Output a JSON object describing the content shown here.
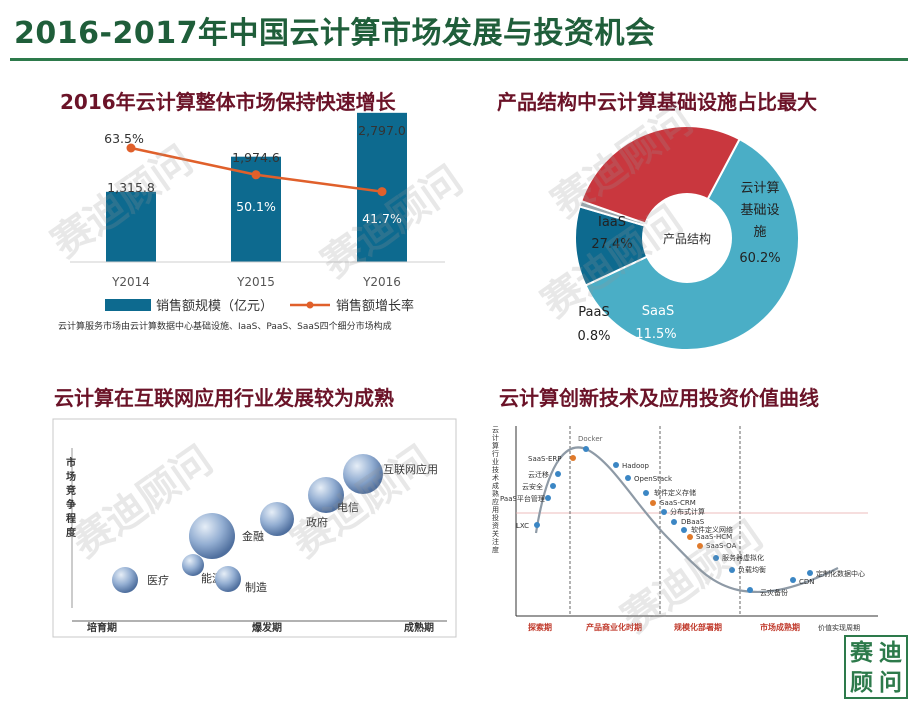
{
  "page": {
    "title": "2016-2017年中国云计算市场发展与投资机会"
  },
  "q1": {
    "title": "2016年云计算整体市场保持快速增长",
    "categories": [
      "Y2014",
      "Y2015",
      "Y2016"
    ],
    "bar_labels": [
      "1,315.8",
      "1,974.6",
      "2,797.0"
    ],
    "rate_labels": [
      "63.5%",
      "50.1%",
      "41.7%"
    ],
    "legend_bar": "销售额规模（亿元）",
    "legend_line": "销售额增长率",
    "note": "云计算服务市场由云计算数据中心基础设施、IaaS、PaaS、SaaS四个细分市场构成",
    "colors": {
      "bar": "#0d6a8f",
      "line": "#e0602b"
    }
  },
  "chart_data": [
    {
      "type": "bar",
      "title": "2016年云计算整体市场保持快速增长",
      "categories": [
        "Y2014",
        "Y2015",
        "Y2016"
      ],
      "series": [
        {
          "name": "销售额规模（亿元）",
          "values": [
            1315.8,
            1974.6,
            2797.0
          ]
        },
        {
          "name": "销售额增长率",
          "values": [
            63.5,
            50.1,
            41.7
          ]
        }
      ],
      "ylim": [
        0,
        3000
      ]
    },
    {
      "type": "pie",
      "title": "产品结构中云计算基础设施占比最大",
      "center_label": "产品结构",
      "slices": [
        {
          "name": "云计算基础设施",
          "value": 60.2
        },
        {
          "name": "SaaS",
          "value": 11.5
        },
        {
          "name": "PaaS",
          "value": 0.8
        },
        {
          "name": "IaaS",
          "value": 27.4
        }
      ]
    }
  ],
  "q2": {
    "title": "产品结构中云计算基础设施占比最大",
    "center": "产品结构",
    "infra_label_lines": [
      "云计算",
      "基础设",
      "施"
    ],
    "infra_pct": "60.2%",
    "iaas_name": "IaaS",
    "iaas_pct": "27.4%",
    "paas_name": "PaaS",
    "paas_pct": "0.8%",
    "saas_name": "SaaS",
    "saas_pct": "11.5%",
    "colors": {
      "infra": "#4aaec6",
      "iaas": "#c9373e",
      "paas": "#9aa6ad",
      "saas": "#0d6a8f"
    }
  },
  "q3": {
    "title": "云计算在互联网应用行业发展较为成熟",
    "y_label": "市场竞争程度",
    "stages": [
      "培育期",
      "爆发期",
      "成熟期"
    ],
    "bubbles": [
      "医疗",
      "能源",
      "制造",
      "金融",
      "政府",
      "电信",
      "互联网应用"
    ]
  },
  "q4": {
    "title": "云计算创新技术及应用投资价值曲线",
    "y_axis_label": "云计算行业技术成熟应用投资关注度",
    "points": [
      "LXC",
      "PaaS平台管理",
      "云安全",
      "云迁移",
      "SaaS-ERP",
      "Docker",
      "Hadoop",
      "OpenStack",
      "软件定义存储",
      "SaaS-CRM",
      "分布式计算",
      "DBaaS",
      "软件定义网络",
      "SaaS-HCM",
      "SaaS-OA",
      "服务器虚拟化",
      "负载均衡",
      "云灾备份",
      "CDN",
      "定制化数据中心"
    ],
    "phases": [
      "探索期",
      "产品商业化时期",
      "规模化部署期",
      "市场成熟期"
    ],
    "x_axis_label": "价值实现周期"
  },
  "seal": {
    "chars": [
      "赛",
      "顾",
      "迪",
      "问"
    ]
  },
  "watermark": "赛迪顾问"
}
